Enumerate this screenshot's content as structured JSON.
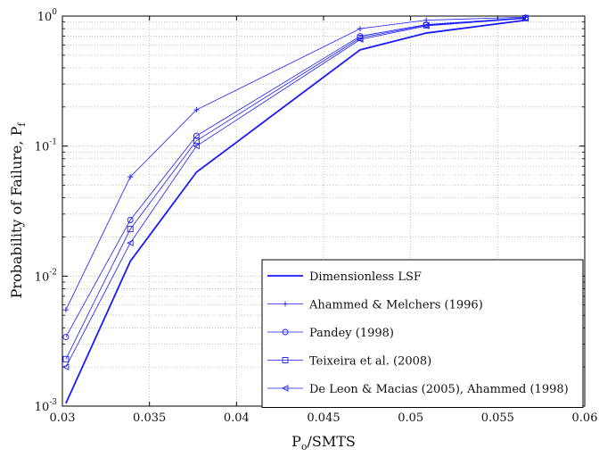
{
  "chart_data": {
    "type": "line",
    "title": "",
    "xlabel": "Po/SMTS",
    "xlabel_main": "P",
    "xlabel_sub": "o",
    "xlabel_rest": "/SMTS",
    "ylabel_main": "Probability of Failure, P",
    "ylabel_sub": "f",
    "xlim": [
      0.03,
      0.06
    ],
    "ylim": [
      0.001,
      1
    ],
    "yscale": "log",
    "grid": true,
    "legend_position": "bottom-right",
    "x_ticks": [
      "0.03",
      "0.035",
      "0.04",
      "0.045",
      "0.05",
      "0.055",
      "0.06"
    ],
    "y_ticks": [
      {
        "base": "10",
        "exp": "-3"
      },
      {
        "base": "10",
        "exp": "-2"
      },
      {
        "base": "10",
        "exp": "-1"
      },
      {
        "base": "10",
        "exp": "0"
      }
    ],
    "x": [
      0.0302,
      0.0339,
      0.0377,
      0.0471,
      0.0509,
      0.0566
    ],
    "series": [
      {
        "name": "Dimensionless LSF",
        "marker": "none",
        "bold": true,
        "values": [
          0.00105,
          0.013,
          0.063,
          0.55,
          0.74,
          0.93
        ]
      },
      {
        "name": "Ahammed & Melchers (1996)",
        "marker": "plus",
        "values": [
          0.0055,
          0.058,
          0.19,
          0.8,
          0.93,
          0.98
        ]
      },
      {
        "name": "Pandey (1998)",
        "marker": "circle",
        "values": [
          0.0034,
          0.027,
          0.12,
          0.7,
          0.86,
          0.97
        ]
      },
      {
        "name": "Teixeira et al. (2008)",
        "marker": "square",
        "values": [
          0.0023,
          0.023,
          0.11,
          0.68,
          0.85,
          0.965
        ]
      },
      {
        "name": "De Leon & Macias (2005), Ahammed (1998)",
        "marker": "triangle-left",
        "values": [
          0.002,
          0.018,
          0.1,
          0.66,
          0.84,
          0.96
        ]
      }
    ],
    "line_color": "#1a1aff"
  }
}
